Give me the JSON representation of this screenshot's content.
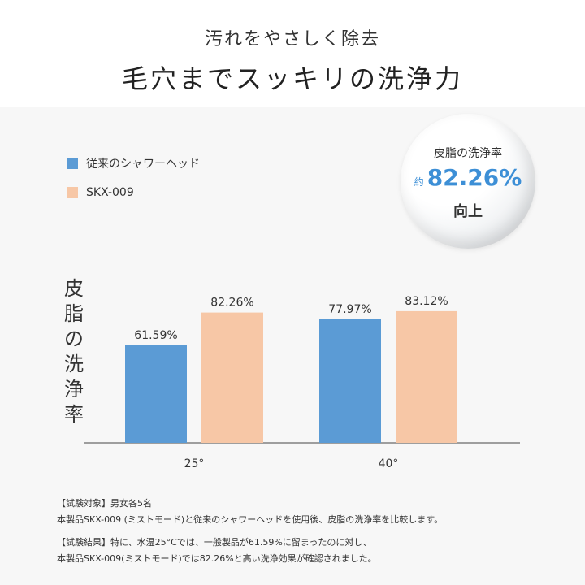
{
  "header": {
    "subtitle": "汚れをやさしく除去",
    "title": "毛穴までスッキリの洗浄力"
  },
  "legend": [
    {
      "label": "従来のシャワーヘッド",
      "color": "#5b9bd5"
    },
    {
      "label": "SKX-009",
      "color": "#f7c7a6"
    }
  ],
  "badge": {
    "top": "皮脂の洗浄率",
    "prefix": "約",
    "value": "82.26%",
    "bottom": "向上"
  },
  "ylabel_chars": [
    "皮",
    "脂",
    "の",
    "洗",
    "浄",
    "率"
  ],
  "chart_data": {
    "type": "bar",
    "categories": [
      "25°",
      "40°"
    ],
    "series": [
      {
        "name": "従来のシャワーヘッド",
        "values": [
          61.59,
          77.97
        ],
        "labels": [
          "61.59%",
          "77.97%"
        ],
        "color": "#5b9bd5"
      },
      {
        "name": "SKX-009",
        "values": [
          82.26,
          83.12
        ],
        "labels": [
          "82.26%",
          "83.12%"
        ],
        "color": "#f7c7a6"
      }
    ],
    "ylabel": "皮脂の洗浄率",
    "ylim": [
      0,
      100
    ],
    "grid": false,
    "legend_position": "top-left"
  },
  "notes": {
    "line1": "【試験対象】男女各5名",
    "line2": "本製品SKX-009 (ミストモード)と従来のシャワーヘッドを使用後、皮脂の洗浄率を比較します。",
    "line3": "【試験結果】特に、水温25°Cでは、一般製品が61.59%に留まったのに対し、",
    "line4": "本製品SKX-009(ミストモード)では82.26%と高い洗浄効果が確認されました。"
  }
}
